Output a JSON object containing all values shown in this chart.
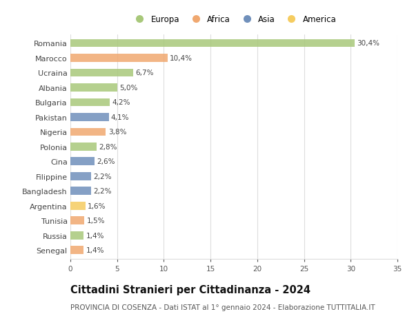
{
  "countries": [
    "Romania",
    "Marocco",
    "Ucraina",
    "Albania",
    "Bulgaria",
    "Pakistan",
    "Nigeria",
    "Polonia",
    "Cina",
    "Filippine",
    "Bangladesh",
    "Argentina",
    "Tunisia",
    "Russia",
    "Senegal"
  ],
  "values": [
    30.4,
    10.4,
    6.7,
    5.0,
    4.2,
    4.1,
    3.8,
    2.8,
    2.6,
    2.2,
    2.2,
    1.6,
    1.5,
    1.4,
    1.4
  ],
  "labels": [
    "30,4%",
    "10,4%",
    "6,7%",
    "5,0%",
    "4,2%",
    "4,1%",
    "3,8%",
    "2,8%",
    "2,6%",
    "2,2%",
    "2,2%",
    "1,6%",
    "1,5%",
    "1,4%",
    "1,4%"
  ],
  "continents": [
    "Europa",
    "Africa",
    "Europa",
    "Europa",
    "Europa",
    "Asia",
    "Africa",
    "Europa",
    "Asia",
    "Asia",
    "Asia",
    "America",
    "Africa",
    "Europa",
    "Africa"
  ],
  "colors": {
    "Europa": "#a8c87a",
    "Africa": "#f0a870",
    "Asia": "#7090bb",
    "America": "#f5cc60"
  },
  "legend_order": [
    "Europa",
    "Africa",
    "Asia",
    "America"
  ],
  "xlim": [
    0,
    35
  ],
  "xticks": [
    0,
    5,
    10,
    15,
    20,
    25,
    30,
    35
  ],
  "title": "Cittadini Stranieri per Cittadinanza - 2024",
  "subtitle": "PROVINCIA DI COSENZA - Dati ISTAT al 1° gennaio 2024 - Elaborazione TUTTITALIA.IT",
  "title_fontsize": 10.5,
  "subtitle_fontsize": 7.5,
  "background_color": "#ffffff",
  "grid_color": "#dddddd",
  "bar_height": 0.55
}
